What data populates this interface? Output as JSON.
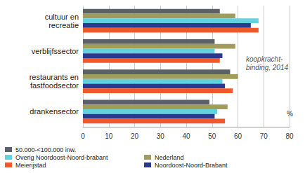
{
  "chart_data": {
    "type": "bar",
    "orientation": "horizontal",
    "categories": [
      "cultuur en\nrecreatie",
      "verblijfssector",
      "restaurants en\nfastfoodsector",
      "drankensector"
    ],
    "series": [
      {
        "name": "50.000-<100.000 inw.",
        "color": "#5b6166",
        "values": [
          53,
          51,
          57,
          49
        ]
      },
      {
        "name": "Nederland",
        "color": "#a19c5c",
        "values": [
          59,
          59,
          60,
          56
        ]
      },
      {
        "name": "Overig Noordoost-Noord-brabant",
        "color": "#62d2df",
        "values": [
          68,
          51,
          54,
          52
        ]
      },
      {
        "name": "Noordoost-Noord-Brabant",
        "color": "#2a388e",
        "values": [
          65,
          54,
          55,
          51
        ]
      },
      {
        "name": "Meierijstad",
        "color": "#f0592a",
        "values": [
          68,
          53,
          58,
          55
        ]
      }
    ],
    "xlabel": "%",
    "annotation": "koopkracht-\nbinding, 2014",
    "xlim": [
      0,
      80
    ],
    "xticks": [
      0,
      10,
      20,
      30,
      40,
      50,
      60,
      70,
      80
    ],
    "grid": true,
    "legend": "bottom"
  }
}
